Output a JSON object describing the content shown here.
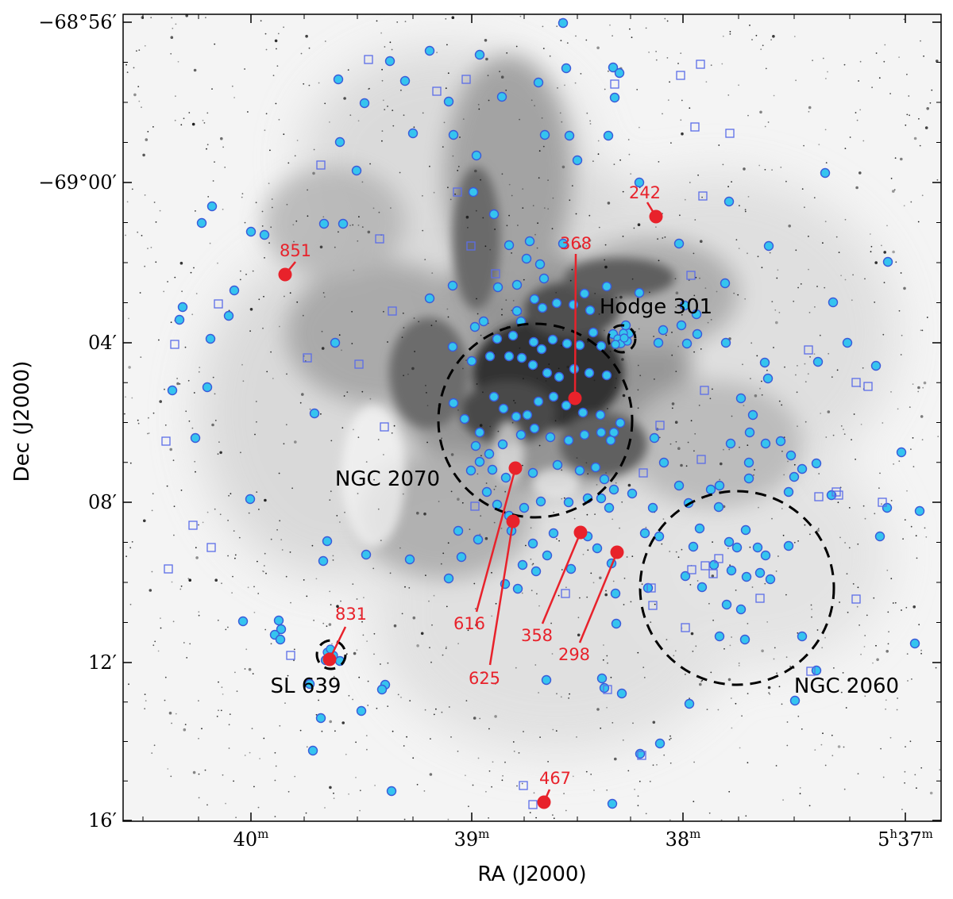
{
  "figure": {
    "x_axis_title": "RA (J2000)",
    "y_axis_title": "Dec (J2000)",
    "x_ticks": [
      {
        "ra_min": 40,
        "label": "40",
        "sup": "m"
      },
      {
        "ra_min": 39,
        "label": "39",
        "sup": "m"
      },
      {
        "ra_min": 38,
        "label": "38",
        "sup": "m"
      },
      {
        "ra_min": 37,
        "label": "5",
        "sup": "h",
        "label2": "37",
        "sup2": "m"
      }
    ],
    "y_ticks": [
      {
        "dec_offset_arcmin": 0,
        "label": "−68°56′"
      },
      {
        "dec_offset_arcmin": 4,
        "label": "−69°00′"
      },
      {
        "dec_offset_arcmin": 8,
        "label": "04′"
      },
      {
        "dec_offset_arcmin": 12,
        "label": "08′"
      },
      {
        "dec_offset_arcmin": 16,
        "label": "12′"
      },
      {
        "dec_offset_arcmin": 20,
        "label": "16′"
      }
    ],
    "clusters": [
      {
        "name": "NGC 2070"
      },
      {
        "name": "Hodge 301"
      },
      {
        "name": "NGC 2060"
      },
      {
        "name": "SL 639"
      }
    ],
    "highlighted_stars": [
      {
        "id": "242"
      },
      {
        "id": "368"
      },
      {
        "id": "851"
      },
      {
        "id": "831"
      },
      {
        "id": "616"
      },
      {
        "id": "625"
      },
      {
        "id": "358"
      },
      {
        "id": "298"
      },
      {
        "id": "467"
      }
    ],
    "colors": {
      "highlight": "#e8222b",
      "circle_marker_fill": "#35c4ef",
      "circle_marker_edge": "#3b5bd9",
      "square_marker_edge": "#5b6de8",
      "cluster_outline": "#000000"
    }
  }
}
